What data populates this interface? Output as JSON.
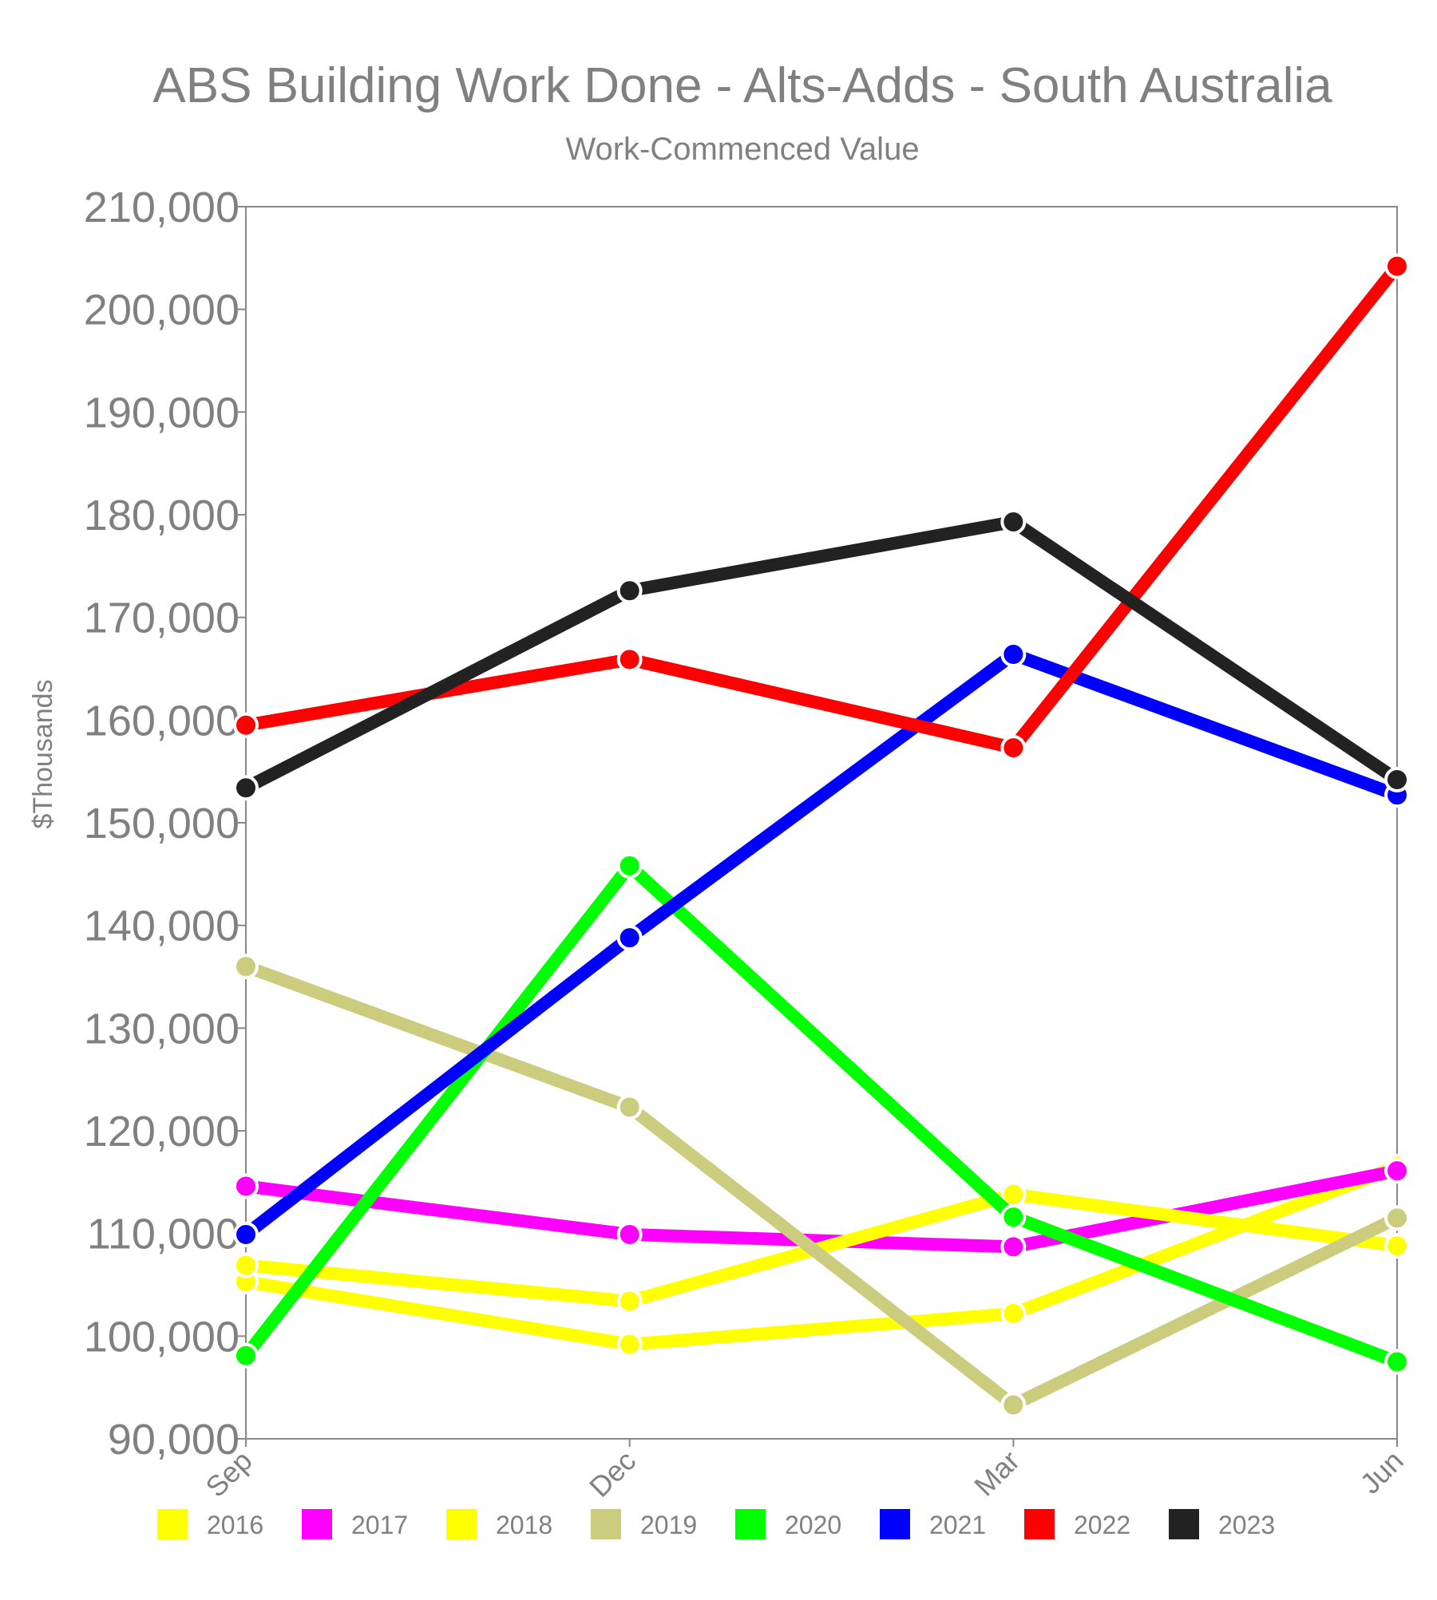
{
  "chart_data": {
    "type": "line",
    "title": "ABS Building Work Done - Alts-Adds - South Australia",
    "subtitle": "Work-Commenced Value",
    "xlabel": "",
    "ylabel": "$Thousands",
    "categories": [
      "Sep",
      "Dec",
      "Mar",
      "Jun"
    ],
    "ylim": [
      90000,
      210000
    ],
    "yticks": [
      90000,
      100000,
      110000,
      120000,
      130000,
      140000,
      150000,
      160000,
      170000,
      180000,
      190000,
      200000,
      210000
    ],
    "ytick_labels": [
      "90,000",
      "100,000",
      "110,000",
      "120,000",
      "130,000",
      "140,000",
      "150,000",
      "160,000",
      "170,000",
      "180,000",
      "190,000",
      "200,000",
      "210,000"
    ],
    "grid": false,
    "legend_position": "bottom",
    "series": [
      {
        "name": "2016",
        "color": "#ffff00",
        "values": [
          105300,
          99200,
          102200,
          116500
        ]
      },
      {
        "name": "2017",
        "color": "#ff00ff",
        "values": [
          114600,
          109900,
          108700,
          116100
        ]
      },
      {
        "name": "2018",
        "color": "#ffff00",
        "values": [
          106900,
          103400,
          113800,
          108800
        ]
      },
      {
        "name": "2019",
        "color": "#cccc7f",
        "values": [
          136000,
          122300,
          93300,
          111500
        ]
      },
      {
        "name": "2020",
        "color": "#00ff00",
        "values": [
          98100,
          145800,
          111600,
          97500
        ]
      },
      {
        "name": "2021",
        "color": "#0000ff",
        "values": [
          109900,
          138800,
          166400,
          152700
        ]
      },
      {
        "name": "2022",
        "color": "#ff0000",
        "values": [
          159500,
          165900,
          157300,
          204200
        ]
      },
      {
        "name": "2023",
        "color": "#222222",
        "values": [
          153400,
          172600,
          179300,
          154200
        ]
      }
    ]
  }
}
